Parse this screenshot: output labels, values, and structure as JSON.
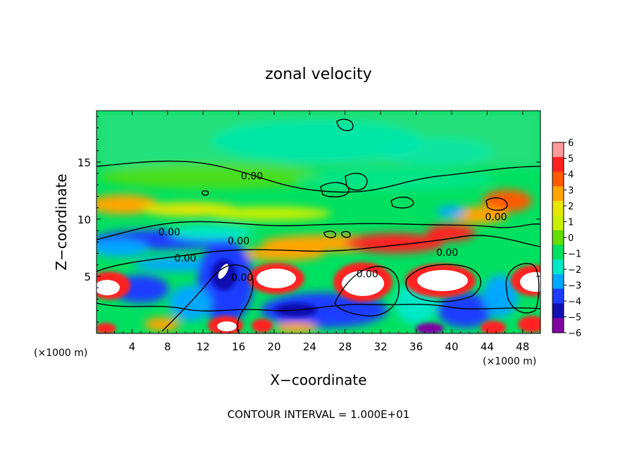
{
  "chart_data": {
    "type": "heatmap",
    "title": "zonal velocity",
    "xlabel": "X−coordinate",
    "ylabel": "Z−coordinate",
    "x_unit_left": "(×1000 m)",
    "x_unit_right": "(×1000 m)",
    "footer": "CONTOUR INTERVAL = 1.000E+01",
    "xlim": [
      0,
      50
    ],
    "ylim": [
      0,
      19.5
    ],
    "xticks": [
      4,
      8,
      12,
      16,
      20,
      24,
      28,
      32,
      36,
      40,
      44,
      48
    ],
    "yticks": [
      5,
      10,
      15
    ],
    "colorbar": {
      "ticks": [
        "6",
        "5",
        "4",
        "3",
        "2",
        "1",
        "0",
        "−1",
        "−2",
        "−3",
        "−4",
        "−5",
        "−6"
      ],
      "colors": [
        "#ff9a9a",
        "#ff2020",
        "#ff5a00",
        "#ffa500",
        "#e6e600",
        "#c8f000",
        "#66dd00",
        "#00e060",
        "#00e8c8",
        "#00a8ff",
        "#1e3cff",
        "#1010b0",
        "#8000a0"
      ]
    },
    "contour_labels": [
      {
        "text": "0.00",
        "x": 17.5,
        "z": 13.8
      },
      {
        "text": "0.00",
        "x": 8.2,
        "z": 8.9
      },
      {
        "text": "0.00",
        "x": 16.0,
        "z": 8.1
      },
      {
        "text": "0.00",
        "x": 10.0,
        "z": 6.6
      },
      {
        "text": "0.00",
        "x": 16.4,
        "z": 4.9
      },
      {
        "text": "0.00",
        "x": 30.5,
        "z": 5.2
      },
      {
        "text": "0.00",
        "x": 39.5,
        "z": 7.1
      },
      {
        "text": "0.00",
        "x": 45.0,
        "z": 10.2
      }
    ]
  }
}
